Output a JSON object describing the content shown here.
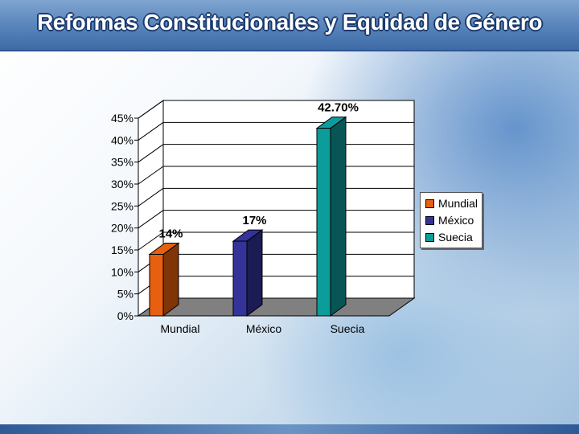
{
  "header": {
    "title": "Reformas Constitucionales y Equidad de Género"
  },
  "colors": {
    "Mundial": "#e6600f",
    "México": "#333399",
    "Suecia": "#0c9d9b"
  },
  "chart_data": {
    "type": "bar",
    "style": "3d",
    "categories": [
      "Mundial",
      "México",
      "Suecia"
    ],
    "values": [
      14,
      17,
      42.7
    ],
    "data_labels": [
      "14%",
      "17%",
      "42.70%"
    ],
    "ylim": [
      0,
      45
    ],
    "yticks": [
      "0%",
      "5%",
      "10%",
      "15%",
      "20%",
      "25%",
      "30%",
      "35%",
      "40%",
      "45%"
    ],
    "grid": true,
    "legend_position": "right",
    "legend": [
      "Mundial",
      "México",
      "Suecia"
    ]
  }
}
